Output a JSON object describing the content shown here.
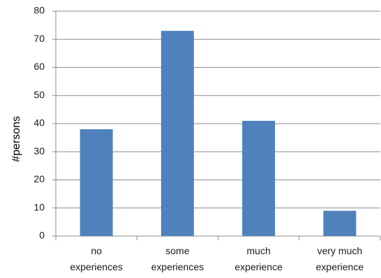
{
  "chart_data": {
    "type": "bar",
    "title": "",
    "xlabel": "",
    "ylabel": "#persons",
    "categories": [
      [
        "no",
        "experiences"
      ],
      [
        "some",
        "experiences"
      ],
      [
        "much",
        "experience"
      ],
      [
        "very much",
        "experience"
      ]
    ],
    "values": [
      38,
      73,
      41,
      9
    ],
    "ylim": [
      0,
      80
    ],
    "yticks": [
      0,
      10,
      20,
      30,
      40,
      50,
      60,
      70,
      80
    ],
    "grid": "horizontal",
    "legend": "none",
    "bar_color": "#4F81BD",
    "grid_color": "#8c8c8c"
  }
}
